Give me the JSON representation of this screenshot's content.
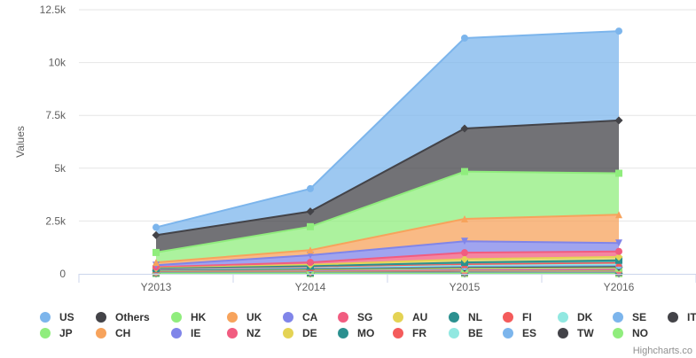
{
  "chart_data": {
    "type": "area",
    "stacked": true,
    "title": "",
    "xlabel": "",
    "ylabel": "Values",
    "categories": [
      "Y2013",
      "Y2014",
      "Y2015",
      "Y2016"
    ],
    "ylim": [
      0,
      12500
    ],
    "yticks": [
      "0",
      "2.5k",
      "5k",
      "7.5k",
      "10k",
      "12.5k"
    ],
    "ytick_values": [
      0,
      2500,
      5000,
      7500,
      10000,
      12500
    ],
    "grid": true,
    "legend_position": "bottom",
    "credits": "Highcharts.co",
    "series": [
      {
        "name": "US",
        "color": "#7cb5ec",
        "marker": "circle",
        "values": [
          370,
          1080,
          4280,
          4230
        ]
      },
      {
        "name": "Others",
        "color": "#434348",
        "marker": "diamond",
        "values": [
          820,
          720,
          2040,
          2500
        ]
      },
      {
        "name": "HK",
        "color": "#90ed7d",
        "marker": "square",
        "values": [
          470,
          1110,
          2240,
          1960
        ]
      },
      {
        "name": "UK",
        "color": "#f7a35c",
        "marker": "triangle",
        "values": [
          130,
          240,
          1060,
          1340
        ]
      },
      {
        "name": "CA",
        "color": "#8085e9",
        "marker": "triangle-down",
        "values": [
          90,
          340,
          540,
          400
        ]
      },
      {
        "name": "SG",
        "color": "#f15c80",
        "marker": "circle",
        "values": [
          50,
          110,
          310,
          260
        ]
      },
      {
        "name": "AU",
        "color": "#e4d354",
        "marker": "diamond",
        "values": [
          30,
          70,
          150,
          160
        ]
      },
      {
        "name": "NL",
        "color": "#2b908f",
        "marker": "square",
        "values": [
          40,
          70,
          100,
          130
        ]
      },
      {
        "name": "FI",
        "color": "#f45b5b",
        "marker": "triangle",
        "values": [
          20,
          30,
          60,
          70
        ]
      },
      {
        "name": "DK",
        "color": "#91e8e1",
        "marker": "triangle-down",
        "values": [
          20,
          30,
          50,
          60
        ]
      },
      {
        "name": "SE",
        "color": "#7cb5ec",
        "marker": "circle",
        "values": [
          20,
          30,
          50,
          60
        ]
      },
      {
        "name": "IT",
        "color": "#434348",
        "marker": "diamond",
        "values": [
          20,
          30,
          40,
          50
        ]
      },
      {
        "name": "JP",
        "color": "#90ed7d",
        "marker": "square",
        "values": [
          20,
          30,
          40,
          40
        ]
      },
      {
        "name": "CH",
        "color": "#f7a35c",
        "marker": "triangle",
        "values": [
          10,
          20,
          30,
          40
        ]
      },
      {
        "name": "IE",
        "color": "#8085e9",
        "marker": "triangle-down",
        "values": [
          10,
          20,
          30,
          30
        ]
      },
      {
        "name": "NZ",
        "color": "#f15c80",
        "marker": "circle",
        "values": [
          10,
          20,
          30,
          30
        ]
      },
      {
        "name": "DE",
        "color": "#e4d354",
        "marker": "diamond",
        "values": [
          10,
          20,
          20,
          30
        ]
      },
      {
        "name": "MO",
        "color": "#2b908f",
        "marker": "square",
        "values": [
          10,
          10,
          20,
          20
        ]
      },
      {
        "name": "FR",
        "color": "#f45b5b",
        "marker": "triangle",
        "values": [
          10,
          10,
          20,
          20
        ]
      },
      {
        "name": "BE",
        "color": "#91e8e1",
        "marker": "triangle-down",
        "values": [
          10,
          10,
          20,
          20
        ]
      },
      {
        "name": "ES",
        "color": "#7cb5ec",
        "marker": "circle",
        "values": [
          10,
          10,
          10,
          20
        ]
      },
      {
        "name": "TW",
        "color": "#434348",
        "marker": "diamond",
        "values": [
          10,
          10,
          10,
          10
        ]
      },
      {
        "name": "NO",
        "color": "#90ed7d",
        "marker": "square",
        "values": [
          10,
          10,
          10,
          10
        ]
      }
    ]
  }
}
